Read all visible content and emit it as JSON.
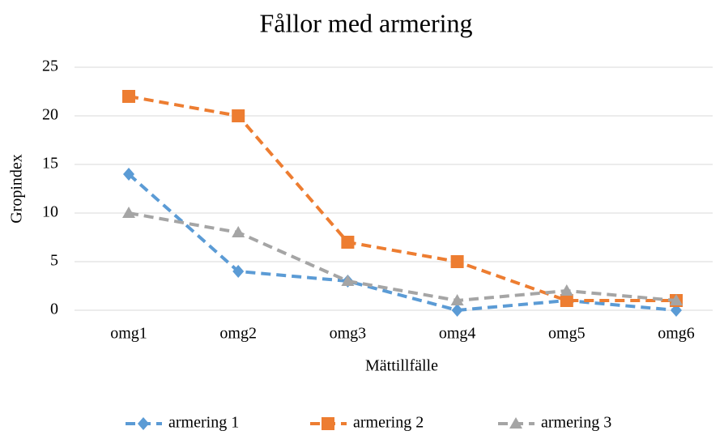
{
  "chart_data": {
    "type": "line",
    "title": "Fållor med armering",
    "x_label": "Mättillfälle",
    "y_label": "Gropindex",
    "categories": [
      "omg1",
      "omg2",
      "omg3",
      "omg4",
      "omg5",
      "omg6"
    ],
    "series": [
      {
        "name": "armering 1",
        "color": "#5b9bd5",
        "marker": "diamond",
        "values": [
          14,
          4,
          3,
          0,
          1,
          0
        ]
      },
      {
        "name": "armering 2",
        "color": "#ed7d31",
        "marker": "square",
        "values": [
          22,
          20,
          7,
          5,
          1,
          1
        ]
      },
      {
        "name": "armering 3",
        "color": "#a5a5a5",
        "marker": "triangle",
        "values": [
          10,
          8,
          3,
          1,
          2,
          1
        ]
      }
    ],
    "ylim": [
      0,
      25
    ],
    "yticks": [
      0,
      5,
      10,
      15,
      20,
      25
    ],
    "grid": true,
    "legend": "bottom"
  }
}
